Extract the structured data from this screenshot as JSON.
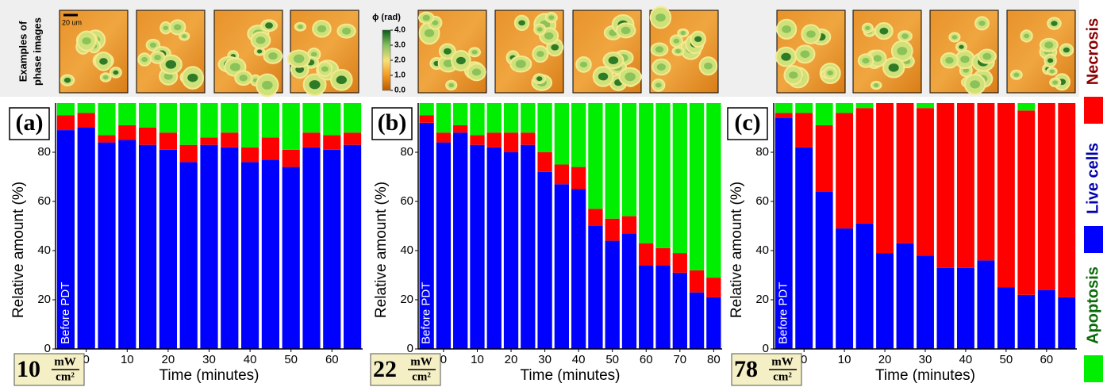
{
  "chart_data": [
    {
      "type": "bar",
      "stacked": true,
      "panel_label": "(a)",
      "power": {
        "value": "10",
        "unit_top": "mW",
        "unit_bottom": "cm²"
      },
      "ylabel": "Relative amount (%)",
      "xlabel": "Time (minutes)",
      "categories": [
        "Before PDT",
        "0",
        null,
        "10",
        null,
        "20",
        null,
        "30",
        null,
        "40",
        null,
        "50",
        null,
        "60",
        null
      ],
      "ylim": [
        0,
        100
      ],
      "yticks": [
        0,
        20,
        40,
        60,
        80
      ],
      "series": [
        {
          "name": "Live cells",
          "color": "#0000ff",
          "values": [
            89,
            90,
            84,
            85,
            83,
            81,
            76,
            83,
            82,
            76,
            77,
            74,
            82,
            81,
            83
          ]
        },
        {
          "name": "Necrosis",
          "color": "#ff0000",
          "values": [
            6,
            6,
            3,
            6,
            7,
            7,
            7,
            3,
            6,
            6,
            9,
            7,
            6,
            6,
            5
          ]
        },
        {
          "name": "Apoptosis",
          "color": "#00ee00",
          "values": [
            5,
            4,
            13,
            9,
            10,
            12,
            17,
            14,
            12,
            18,
            14,
            19,
            12,
            13,
            12
          ]
        }
      ]
    },
    {
      "type": "bar",
      "stacked": true,
      "panel_label": "(b)",
      "power": {
        "value": "22",
        "unit_top": "mW",
        "unit_bottom": "cm²"
      },
      "ylabel": "Relative amount (%)",
      "xlabel": "Time (minutes)",
      "categories": [
        "Before PDT",
        "0",
        null,
        "10",
        null,
        "20",
        null,
        "30",
        null,
        "40",
        null,
        "50",
        null,
        "60",
        null,
        "70",
        null,
        "80"
      ],
      "ylim": [
        0,
        100
      ],
      "yticks": [
        0,
        20,
        40,
        60,
        80
      ],
      "series": [
        {
          "name": "Live cells",
          "color": "#0000ff",
          "values": [
            92,
            84,
            88,
            83,
            82,
            80,
            83,
            72,
            67,
            65,
            50,
            44,
            47,
            34,
            34,
            31,
            23,
            21
          ]
        },
        {
          "name": "Necrosis",
          "color": "#ff0000",
          "values": [
            3,
            4,
            3,
            4,
            6,
            8,
            5,
            8,
            8,
            9,
            7,
            9,
            7,
            9,
            7,
            8,
            9,
            8
          ]
        },
        {
          "name": "Apoptosis",
          "color": "#00ee00",
          "values": [
            5,
            12,
            9,
            13,
            12,
            12,
            12,
            20,
            25,
            26,
            43,
            47,
            46,
            57,
            59,
            61,
            68,
            71
          ]
        }
      ]
    },
    {
      "type": "bar",
      "stacked": true,
      "panel_label": "(c)",
      "power": {
        "value": "78",
        "unit_top": "mW",
        "unit_bottom": "cm²"
      },
      "ylabel": "Relative amount (%)",
      "xlabel": "Time (minutes)",
      "categories": [
        "Before PDT",
        "0",
        null,
        "10",
        null,
        "20",
        null,
        "30",
        null,
        "40",
        null,
        "50",
        null,
        "60",
        null
      ],
      "ylim": [
        0,
        100
      ],
      "yticks": [
        0,
        20,
        40,
        60,
        80
      ],
      "series": [
        {
          "name": "Live cells",
          "color": "#0000ff",
          "values": [
            94,
            82,
            64,
            49,
            51,
            39,
            43,
            38,
            33,
            33,
            36,
            25,
            22,
            24,
            21
          ]
        },
        {
          "name": "Necrosis",
          "color": "#ff0000",
          "values": [
            2,
            14,
            27,
            47,
            47,
            61,
            57,
            60,
            67,
            67,
            64,
            75,
            75,
            76,
            79
          ]
        },
        {
          "name": "Apoptosis",
          "color": "#00ee00",
          "values": [
            4,
            4,
            9,
            4,
            2,
            0,
            0,
            2,
            0,
            0,
            0,
            0,
            3,
            0,
            0
          ]
        }
      ]
    }
  ],
  "phase_images": {
    "title": [
      "Examples of",
      "phase images"
    ],
    "scale_bar": "20 um",
    "colorbar": {
      "title": "ϕ (rad)",
      "lim": [
        0,
        4
      ],
      "ticks": [
        {
          "value": 4,
          "label": "4.0"
        },
        {
          "value": 3,
          "label": "3.0"
        },
        {
          "value": 2,
          "label": "2.0"
        },
        {
          "value": 1,
          "label": "1.0"
        },
        {
          "value": 0,
          "label": "0.0"
        }
      ]
    }
  }
}
